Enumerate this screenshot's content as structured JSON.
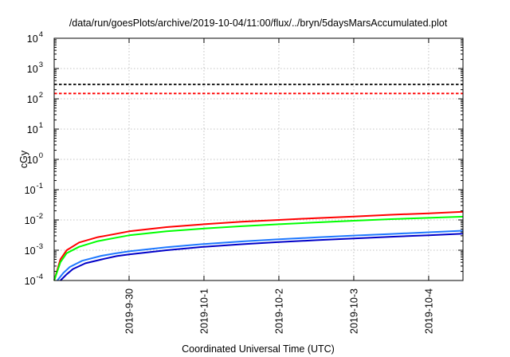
{
  "chart_data": {
    "type": "line",
    "title": "/data/run/goesPlots/archive/2019-10-04/11:00/flux/../bryn/5daysMarsAccumulated.plot",
    "xlabel": "Coordinated Universal Time (UTC)",
    "ylabel": "cGy",
    "y_scale": "log",
    "ylim": [
      0.0001,
      10000
    ],
    "y_ticks": [
      {
        "value": 0.0001,
        "base": "10",
        "exp": "-4"
      },
      {
        "value": 0.001,
        "base": "10",
        "exp": "-3"
      },
      {
        "value": 0.01,
        "base": "10",
        "exp": "-2"
      },
      {
        "value": 0.1,
        "base": "10",
        "exp": "-1"
      },
      {
        "value": 1,
        "base": "10",
        "exp": "0"
      },
      {
        "value": 10,
        "base": "10",
        "exp": "1"
      },
      {
        "value": 100,
        "base": "10",
        "exp": "2"
      },
      {
        "value": 1000,
        "base": "10",
        "exp": "3"
      },
      {
        "value": 10000,
        "base": "10",
        "exp": "4"
      }
    ],
    "xlim": [
      "2019-09-29T00:00",
      "2019-10-04T11:00"
    ],
    "x_ticks": [
      {
        "value": "2019-09-30T00:00",
        "label": "2019-9-30"
      },
      {
        "value": "2019-10-01T00:00",
        "label": "2019-10-1"
      },
      {
        "value": "2019-10-02T00:00",
        "label": "2019-10-2"
      },
      {
        "value": "2019-10-03T00:00",
        "label": "2019-10-3"
      },
      {
        "value": "2019-10-04T00:00",
        "label": "2019-10-4"
      }
    ],
    "grid": true,
    "reference_lines": [
      {
        "y": 300,
        "color": "#000000",
        "style": "dashed"
      },
      {
        "y": 150,
        "color": "#ff0000",
        "style": "dashed"
      }
    ],
    "series": [
      {
        "color": "#ff0000",
        "x": [
          "2019-09-29T00:00",
          "2019-09-29T02:00",
          "2019-09-29T04:00",
          "2019-09-29T08:00",
          "2019-09-29T14:00",
          "2019-09-29T20:00",
          "2019-09-30T00:00",
          "2019-09-30T12:00",
          "2019-10-01T00:00",
          "2019-10-01T12:00",
          "2019-10-02T00:00",
          "2019-10-02T12:00",
          "2019-10-03T00:00",
          "2019-10-03T12:00",
          "2019-10-04T00:00",
          "2019-10-04T11:00"
        ],
        "values": [
          0.0001,
          0.0005,
          0.001,
          0.0018,
          0.0027,
          0.0035,
          0.0042,
          0.0058,
          0.0072,
          0.0087,
          0.01,
          0.0115,
          0.013,
          0.0148,
          0.0165,
          0.0185
        ]
      },
      {
        "color": "#00ff00",
        "x": [
          "2019-09-29T00:00",
          "2019-09-29T02:00",
          "2019-09-29T04:00",
          "2019-09-29T08:00",
          "2019-09-29T14:00",
          "2019-09-29T20:00",
          "2019-09-30T00:00",
          "2019-09-30T12:00",
          "2019-10-01T00:00",
          "2019-10-01T12:00",
          "2019-10-02T00:00",
          "2019-10-02T12:00",
          "2019-10-03T00:00",
          "2019-10-03T12:00",
          "2019-10-04T00:00",
          "2019-10-04T11:00"
        ],
        "values": [
          0.0001,
          0.0004,
          0.0008,
          0.0013,
          0.002,
          0.0026,
          0.0031,
          0.0042,
          0.0052,
          0.0062,
          0.0072,
          0.0083,
          0.0094,
          0.0106,
          0.0117,
          0.0128
        ]
      },
      {
        "color": "#1e78ff",
        "x": [
          "2019-09-29T01:00",
          "2019-09-29T03:00",
          "2019-09-29T05:00",
          "2019-09-29T09:00",
          "2019-09-29T15:00",
          "2019-09-29T20:00",
          "2019-09-30T00:00",
          "2019-09-30T12:00",
          "2019-10-01T00:00",
          "2019-10-01T12:00",
          "2019-10-02T00:00",
          "2019-10-02T12:00",
          "2019-10-03T00:00",
          "2019-10-03T12:00",
          "2019-10-04T00:00",
          "2019-10-04T11:00"
        ],
        "values": [
          0.0001,
          0.00018,
          0.00028,
          0.00045,
          0.00065,
          0.0008,
          0.00092,
          0.00125,
          0.0016,
          0.00195,
          0.0023,
          0.00265,
          0.00305,
          0.00345,
          0.0039,
          0.0044
        ]
      },
      {
        "color": "#0000c8",
        "x": [
          "2019-09-29T02:00",
          "2019-09-29T04:00",
          "2019-09-29T06:00",
          "2019-09-29T10:00",
          "2019-09-29T16:00",
          "2019-09-29T20:00",
          "2019-09-30T00:00",
          "2019-09-30T12:00",
          "2019-10-01T00:00",
          "2019-10-01T12:00",
          "2019-10-02T00:00",
          "2019-10-02T12:00",
          "2019-10-03T00:00",
          "2019-10-03T12:00",
          "2019-10-04T00:00",
          "2019-10-04T11:00"
        ],
        "values": [
          0.0001,
          0.00016,
          0.00024,
          0.00037,
          0.00052,
          0.00064,
          0.00073,
          0.001,
          0.0013,
          0.00158,
          0.00186,
          0.00214,
          0.00245,
          0.00278,
          0.00312,
          0.0035
        ]
      }
    ]
  }
}
